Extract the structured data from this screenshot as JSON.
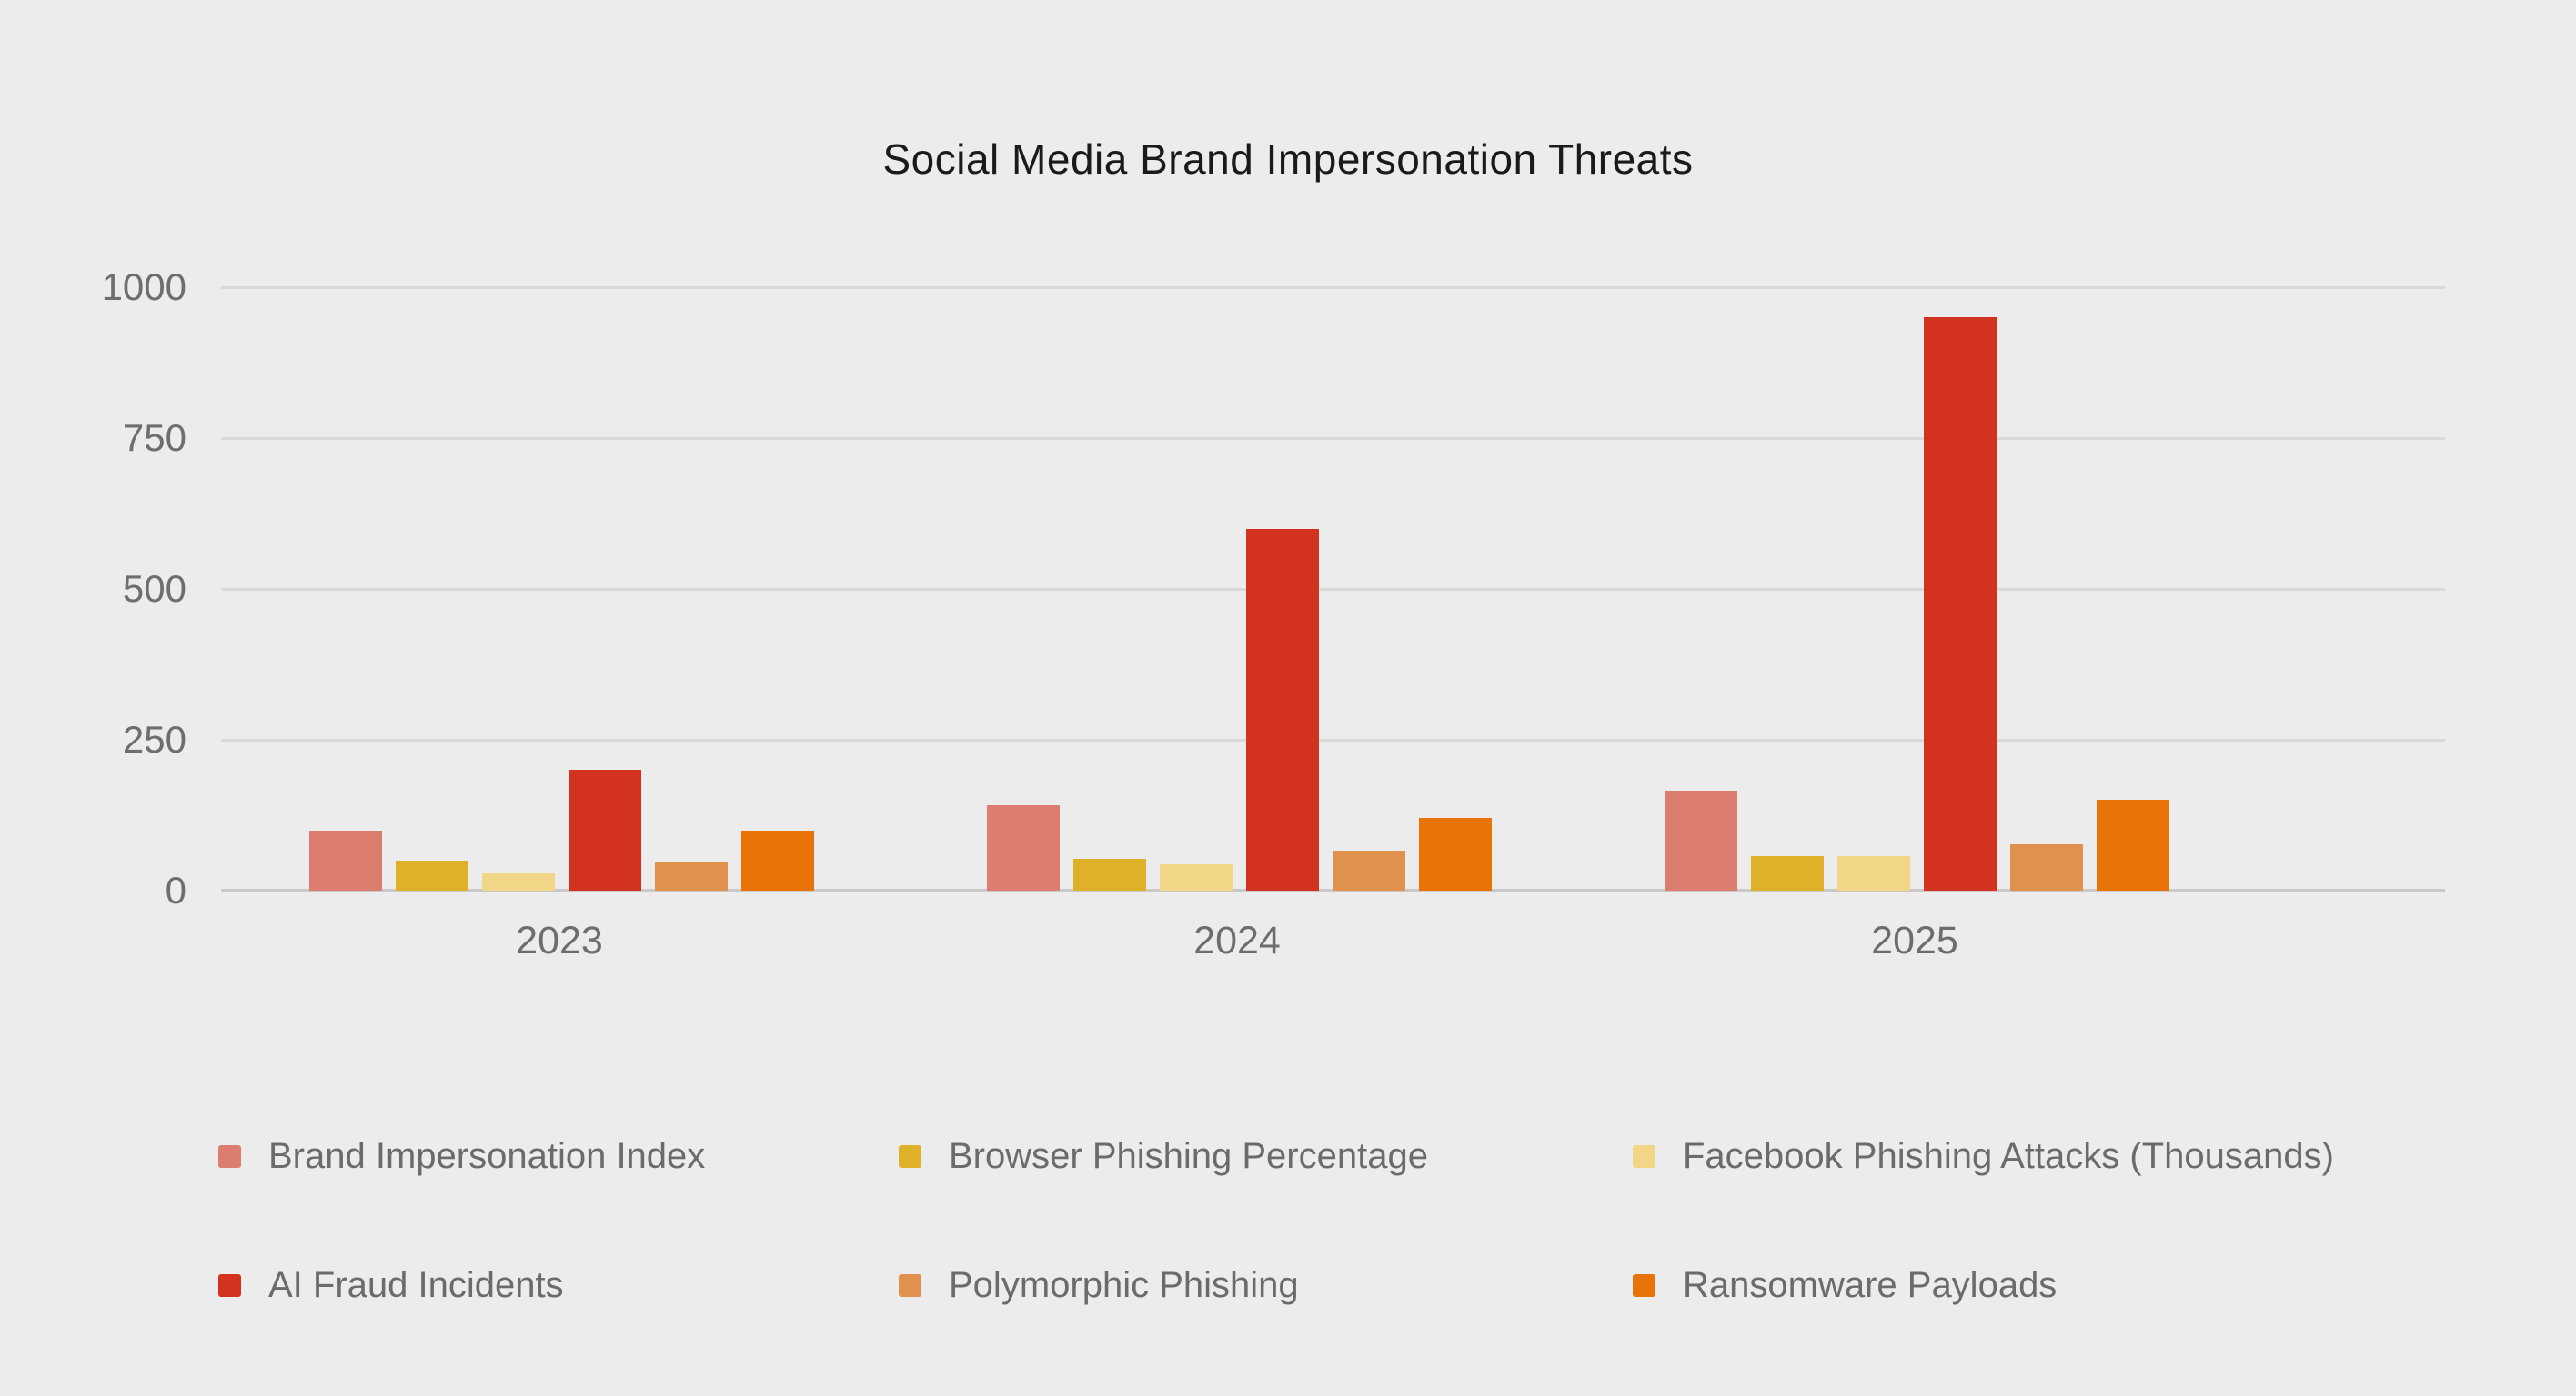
{
  "title": "Social Media Brand Impersonation Threats",
  "ui_colors": {
    "background": "#ececec",
    "gridline": "#d9d9d9",
    "axis_line": "#c9c9c9",
    "title_text": "#1a1a1a",
    "tick_text": "#6e6e6e",
    "legend_text": "#6b6b6b"
  },
  "chart_data": {
    "type": "bar",
    "title": "Social Media Brand Impersonation Threats",
    "xlabel": "",
    "ylabel": "",
    "categories": [
      "2023",
      "2024",
      "2025"
    ],
    "series": [
      {
        "name": "Brand Impersonation Index",
        "color": "#db7e70",
        "values": [
          100,
          142,
          166
        ]
      },
      {
        "name": "Browser Phishing Percentage",
        "color": "#dfb128",
        "values": [
          50,
          52,
          58
        ]
      },
      {
        "name": "Facebook Phishing Attacks (Thousands)",
        "color": "#f2d687",
        "values": [
          30,
          43,
          58
        ]
      },
      {
        "name": "AI Fraud Incidents",
        "color": "#d2321e",
        "values": [
          200,
          600,
          950
        ]
      },
      {
        "name": "Polymorphic Phishing",
        "color": "#e0914e",
        "values": [
          48,
          67,
          77
        ]
      },
      {
        "name": "Ransomware Payloads",
        "color": "#e87408",
        "values": [
          100,
          121,
          151
        ]
      }
    ],
    "ylim": [
      0,
      1000
    ],
    "yticks": [
      0,
      250,
      500,
      750,
      1000
    ],
    "grid": true,
    "legend_position": "bottom"
  }
}
